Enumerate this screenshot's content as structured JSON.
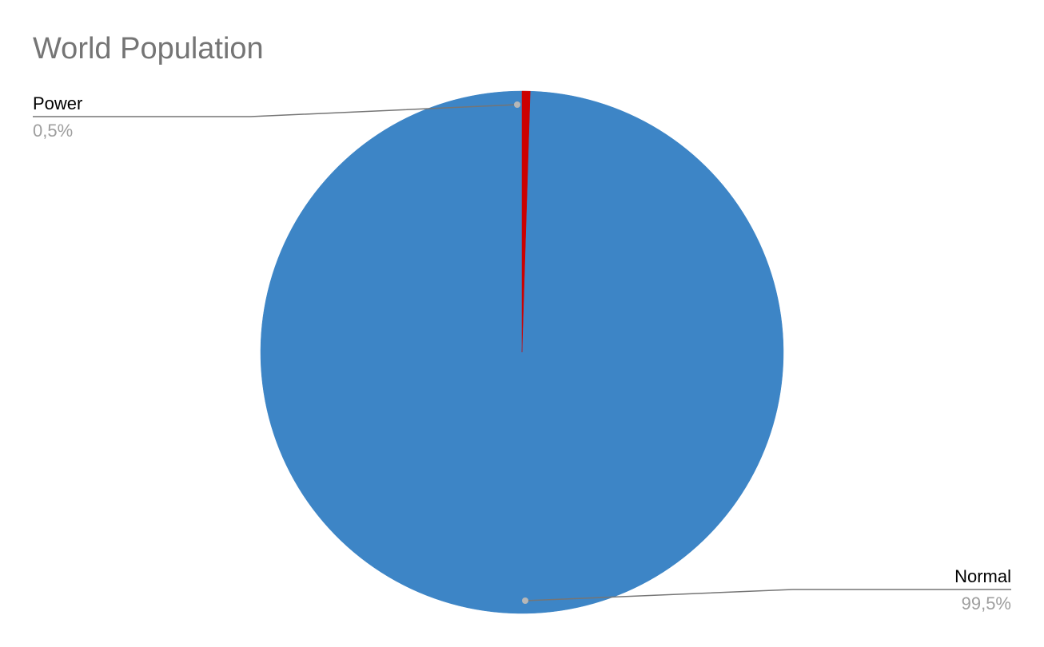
{
  "chart_data": {
    "type": "pie",
    "title": "World Population",
    "slices": [
      {
        "label": "Power",
        "value": 0.5,
        "value_label": "0,5%",
        "color": "#cc0000"
      },
      {
        "label": "Normal",
        "value": 99.5,
        "value_label": "99,5%",
        "color": "#3d85c6"
      }
    ],
    "start_angle": "12 o'clock",
    "direction": "clockwise",
    "label_style": "outside labels with leader lines",
    "colors": {
      "title": "#757575",
      "category_label": "#000000",
      "value_label": "#9e9e9e",
      "leader_line": "#757575",
      "leader_dot": "#b7b7b7"
    }
  }
}
